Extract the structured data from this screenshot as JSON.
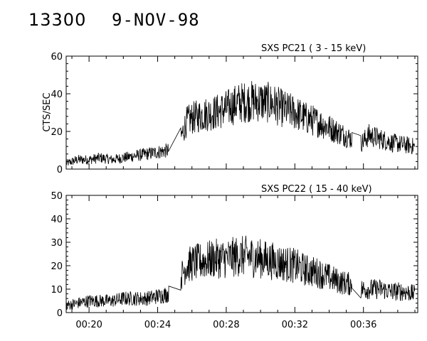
{
  "header": {
    "event_id": "13300",
    "date": "9-NOV-98"
  },
  "chart_data": [
    {
      "type": "line",
      "title": "SXS PC21  (  3 - 15 keV)",
      "ylabel": "CTS/SEC",
      "ylim": [
        0,
        60
      ],
      "yticks": [
        0,
        20,
        40,
        60
      ],
      "xlim": [
        "00:18:40",
        "00:39:10"
      ],
      "xticks": [
        "00:20",
        "00:24",
        "00:28",
        "00:32",
        "00:36"
      ],
      "series": [
        {
          "x": [
            "00:18:40",
            "00:19:20",
            "00:20:00",
            "00:20:40",
            "00:21:20",
            "00:22:00",
            "00:22:40",
            "00:23:20",
            "00:24:00",
            "00:24:40",
            "00:25:20",
            "00:25:40",
            "00:26:00",
            "00:26:40",
            "00:27:20",
            "00:28:00",
            "00:28:40",
            "00:29:20",
            "00:30:00",
            "00:30:40",
            "00:31:20",
            "00:32:00",
            "00:32:40",
            "00:33:20",
            "00:34:00",
            "00:34:40",
            "00:35:20",
            "00:35:40",
            "00:36:20",
            "00:37:00",
            "00:37:40",
            "00:38:20",
            "00:39:00"
          ],
          "values": [
            3,
            5,
            5,
            6,
            5,
            6,
            7,
            8,
            9,
            10,
            16,
            25,
            27,
            29,
            30,
            32,
            35,
            36,
            36,
            35,
            32,
            30,
            27,
            25,
            22,
            19,
            16,
            12,
            18,
            16,
            14,
            13,
            12
          ]
        }
      ]
    },
    {
      "type": "line",
      "title": "SXS PC22  ( 15 - 40 keV)",
      "ylabel": "",
      "ylim": [
        0,
        50
      ],
      "yticks": [
        0,
        10,
        20,
        30,
        40,
        50
      ],
      "xlim": [
        "00:18:40",
        "00:39:10"
      ],
      "xticks": [
        "00:20",
        "00:24",
        "00:28",
        "00:32",
        "00:36"
      ],
      "series": [
        {
          "x": [
            "00:18:40",
            "00:19:20",
            "00:20:00",
            "00:20:40",
            "00:21:20",
            "00:22:00",
            "00:22:40",
            "00:23:20",
            "00:24:00",
            "00:24:40",
            "00:25:20",
            "00:25:40",
            "00:26:00",
            "00:26:40",
            "00:27:20",
            "00:28:00",
            "00:28:40",
            "00:29:20",
            "00:30:00",
            "00:30:40",
            "00:31:20",
            "00:32:00",
            "00:32:40",
            "00:33:20",
            "00:34:00",
            "00:34:40",
            "00:35:20",
            "00:35:40",
            "00:36:20",
            "00:37:00",
            "00:37:40",
            "00:38:20",
            "00:39:00"
          ],
          "values": [
            3,
            4,
            5,
            5,
            5,
            6,
            6,
            6,
            7,
            8,
            15,
            20,
            21,
            22,
            23,
            23,
            24,
            24,
            23,
            22,
            21,
            20,
            18,
            17,
            15,
            13,
            12,
            10,
            10,
            10,
            9,
            9,
            8
          ]
        }
      ]
    }
  ]
}
